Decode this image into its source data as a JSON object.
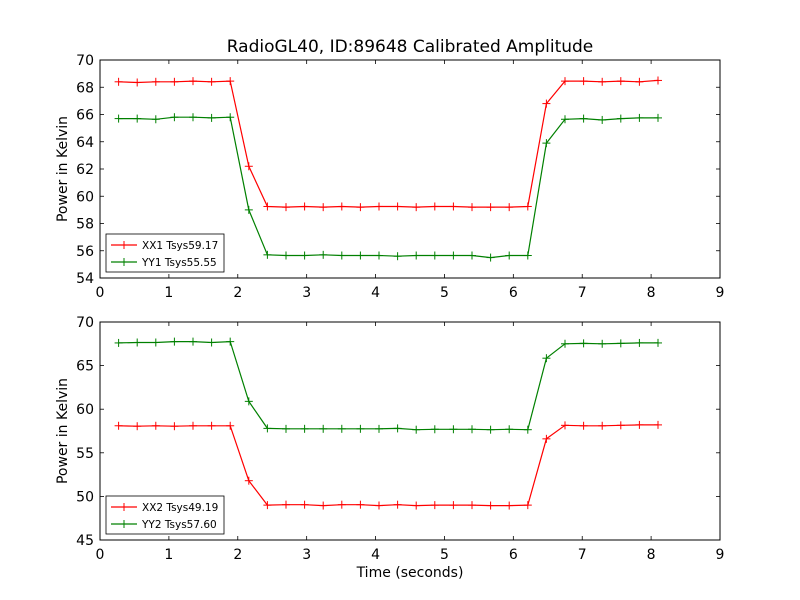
{
  "figure": {
    "title": "RadioGL40, ID:89648 Calibrated Amplitude"
  },
  "chart_data": [
    {
      "type": "line",
      "title": "RadioGL40, ID:89648 Calibrated Amplitude",
      "xlabel": "",
      "ylabel": "Power in Kelvin",
      "xlim": [
        0,
        9
      ],
      "ylim": [
        54,
        70
      ],
      "xticks": [
        0,
        1,
        2,
        3,
        4,
        5,
        6,
        7,
        8,
        9
      ],
      "yticks": [
        54,
        56,
        58,
        60,
        62,
        64,
        66,
        68,
        70
      ],
      "grid": false,
      "legend_position": "lower-left",
      "x": [
        0.27,
        0.54,
        0.81,
        1.08,
        1.35,
        1.62,
        1.89,
        2.16,
        2.43,
        2.7,
        2.97,
        3.24,
        3.51,
        3.78,
        4.05,
        4.32,
        4.59,
        4.86,
        5.13,
        5.4,
        5.67,
        5.94,
        6.21,
        6.48,
        6.75,
        7.02,
        7.29,
        7.56,
        7.83,
        8.1
      ],
      "series": [
        {
          "name": "XX1 Tsys59.17",
          "color": "#ff0000",
          "values": [
            68.4,
            68.35,
            68.4,
            68.4,
            68.45,
            68.4,
            68.45,
            62.2,
            59.25,
            59.2,
            59.25,
            59.2,
            59.25,
            59.2,
            59.25,
            59.25,
            59.2,
            59.25,
            59.25,
            59.2,
            59.2,
            59.2,
            59.25,
            66.8,
            68.45,
            68.45,
            68.4,
            68.45,
            68.4,
            68.5
          ]
        },
        {
          "name": "YY1 Tsys55.55",
          "color": "#008000",
          "values": [
            65.7,
            65.7,
            65.65,
            65.8,
            65.8,
            65.75,
            65.8,
            59.0,
            55.7,
            55.65,
            55.65,
            55.7,
            55.65,
            55.65,
            55.65,
            55.6,
            55.65,
            55.65,
            55.65,
            55.65,
            55.5,
            55.65,
            55.65,
            63.9,
            65.65,
            65.7,
            65.6,
            65.7,
            65.75,
            65.75
          ]
        }
      ]
    },
    {
      "type": "line",
      "title": "",
      "xlabel": "Time (seconds)",
      "ylabel": "Power in Kelvin",
      "xlim": [
        0,
        9
      ],
      "ylim": [
        45,
        70
      ],
      "xticks": [
        0,
        1,
        2,
        3,
        4,
        5,
        6,
        7,
        8,
        9
      ],
      "yticks": [
        45,
        50,
        55,
        60,
        65,
        70
      ],
      "grid": false,
      "legend_position": "lower-left",
      "x": [
        0.27,
        0.54,
        0.81,
        1.08,
        1.35,
        1.62,
        1.89,
        2.16,
        2.43,
        2.7,
        2.97,
        3.24,
        3.51,
        3.78,
        4.05,
        4.32,
        4.59,
        4.86,
        5.13,
        5.4,
        5.67,
        5.94,
        6.21,
        6.48,
        6.75,
        7.02,
        7.29,
        7.56,
        7.83,
        8.1
      ],
      "series": [
        {
          "name": "XX2 Tsys49.19",
          "color": "#ff0000",
          "values": [
            58.1,
            58.05,
            58.1,
            58.05,
            58.1,
            58.1,
            58.1,
            51.8,
            49.0,
            49.05,
            49.05,
            48.95,
            49.05,
            49.05,
            48.95,
            49.05,
            48.95,
            49.0,
            49.0,
            49.0,
            48.95,
            48.95,
            49.0,
            56.6,
            58.15,
            58.1,
            58.1,
            58.15,
            58.2,
            58.2
          ]
        },
        {
          "name": "YY2 Tsys57.60",
          "color": "#008000",
          "values": [
            67.6,
            67.65,
            67.65,
            67.75,
            67.75,
            67.65,
            67.75,
            60.9,
            57.8,
            57.75,
            57.75,
            57.75,
            57.75,
            57.75,
            57.75,
            57.8,
            57.65,
            57.7,
            57.7,
            57.7,
            57.65,
            57.7,
            57.65,
            65.85,
            67.5,
            67.55,
            67.5,
            67.55,
            67.6,
            67.6
          ]
        }
      ]
    }
  ]
}
